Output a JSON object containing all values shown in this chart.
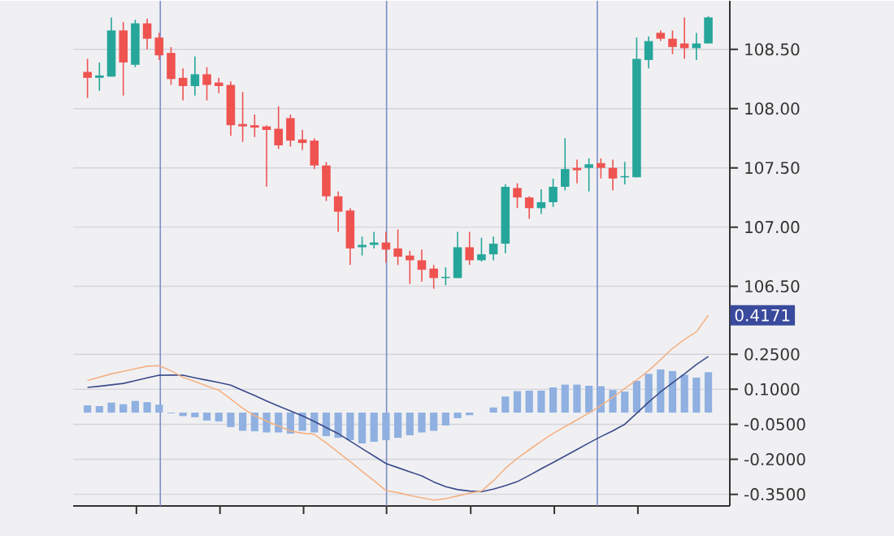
{
  "chart_data": [
    {
      "type": "candlestick",
      "categories": [
        null,
        null,
        null,
        null,
        null,
        null,
        null,
        null,
        null,
        null,
        null,
        null,
        null,
        null,
        null,
        null,
        null,
        null,
        null,
        null,
        null,
        null,
        null,
        null,
        null,
        null,
        null,
        null,
        null,
        null,
        null,
        null,
        null,
        null,
        null,
        null,
        null,
        null,
        null,
        null,
        null,
        null,
        null,
        null,
        null,
        null,
        null,
        null,
        null,
        null,
        null,
        null,
        null
      ],
      "ohlc": [
        [
          108.31,
          108.42,
          108.09,
          108.26
        ],
        [
          108.26,
          108.39,
          108.15,
          108.28
        ],
        [
          108.27,
          108.77,
          108.27,
          108.66
        ],
        [
          108.66,
          108.73,
          108.11,
          108.39
        ],
        [
          108.37,
          108.75,
          108.35,
          108.72
        ],
        [
          108.72,
          108.76,
          108.5,
          108.59
        ],
        [
          108.6,
          108.64,
          108.41,
          108.45
        ],
        [
          108.47,
          108.52,
          108.2,
          108.25
        ],
        [
          108.26,
          108.34,
          108.07,
          108.19
        ],
        [
          108.19,
          108.44,
          108.11,
          108.29
        ],
        [
          108.29,
          108.35,
          108.07,
          108.2
        ],
        [
          108.22,
          108.26,
          108.13,
          108.19
        ],
        [
          108.2,
          108.23,
          107.77,
          107.86
        ],
        [
          107.87,
          108.14,
          107.72,
          107.85
        ],
        [
          107.86,
          107.95,
          107.76,
          107.84
        ],
        [
          107.85,
          107.86,
          107.34,
          107.82
        ],
        [
          107.83,
          108.02,
          107.66,
          107.69
        ],
        [
          107.92,
          107.95,
          107.68,
          107.73
        ],
        [
          107.74,
          107.82,
          107.65,
          107.71
        ],
        [
          107.73,
          107.75,
          107.49,
          107.52
        ],
        [
          107.52,
          107.55,
          107.22,
          107.26
        ],
        [
          107.26,
          107.3,
          106.96,
          107.13
        ],
        [
          107.14,
          107.16,
          106.68,
          106.82
        ],
        [
          106.83,
          106.92,
          106.76,
          106.85
        ],
        [
          106.85,
          106.96,
          106.82,
          106.87
        ],
        [
          106.87,
          106.96,
          106.7,
          106.81
        ],
        [
          106.82,
          106.98,
          106.68,
          106.75
        ],
        [
          106.76,
          106.8,
          106.52,
          106.72
        ],
        [
          106.72,
          106.81,
          106.54,
          106.64
        ],
        [
          106.65,
          106.68,
          106.48,
          106.57
        ],
        [
          106.57,
          106.66,
          106.51,
          106.58
        ],
        [
          106.57,
          106.96,
          106.57,
          106.83
        ],
        [
          106.83,
          106.96,
          106.68,
          106.72
        ],
        [
          106.72,
          106.91,
          106.71,
          106.77
        ],
        [
          106.77,
          106.92,
          106.72,
          106.86
        ],
        [
          106.86,
          107.36,
          106.78,
          107.34
        ],
        [
          107.33,
          107.37,
          107.16,
          107.25
        ],
        [
          107.25,
          107.26,
          107.07,
          107.16
        ],
        [
          107.16,
          107.32,
          107.11,
          107.21
        ],
        [
          107.21,
          107.41,
          107.17,
          107.34
        ],
        [
          107.34,
          107.75,
          107.31,
          107.49
        ],
        [
          107.5,
          107.57,
          107.37,
          107.48
        ],
        [
          107.5,
          107.58,
          107.3,
          107.53
        ],
        [
          107.54,
          107.58,
          107.41,
          107.5
        ],
        [
          107.5,
          107.57,
          107.31,
          107.41
        ],
        [
          107.42,
          107.55,
          107.36,
          107.43
        ],
        [
          107.42,
          108.6,
          107.42,
          108.42
        ],
        [
          108.41,
          108.61,
          108.34,
          108.57
        ],
        [
          108.64,
          108.66,
          108.57,
          108.59
        ],
        [
          108.59,
          108.66,
          108.46,
          108.52
        ],
        [
          108.55,
          108.77,
          108.42,
          108.51
        ],
        [
          108.51,
          108.64,
          108.41,
          108.55
        ],
        [
          108.55,
          108.78,
          108.55,
          108.77
        ]
      ],
      "colors": [
        "#ef5350",
        "#26a69a",
        "#26a69a",
        "#ef5350",
        "#26a69a",
        "#ef5350",
        "#ef5350",
        "#ef5350",
        "#ef5350",
        "#26a69a",
        "#ef5350",
        "#ef5350",
        "#ef5350",
        "#ef5350",
        "#ef5350",
        "#ef5350",
        "#ef5350",
        "#ef5350",
        "#ef5350",
        "#ef5350",
        "#ef5350",
        "#ef5350",
        "#ef5350",
        "#26a69a",
        "#26a69a",
        "#ef5350",
        "#ef5350",
        "#ef5350",
        "#ef5350",
        "#ef5350",
        "#26a69a",
        "#26a69a",
        "#ef5350",
        "#26a69a",
        "#26a69a",
        "#26a69a",
        "#ef5350",
        "#ef5350",
        "#26a69a",
        "#26a69a",
        "#26a69a",
        "#ef5350",
        "#26a69a",
        "#ef5350",
        "#ef5350",
        "#26a69a",
        "#26a69a",
        "#26a69a",
        "#ef5350",
        "#ef5350",
        "#ef5350",
        "#26a69a",
        "#26a69a"
      ],
      "ylim": [
        106.36,
        108.91
      ],
      "yticks": [
        {
          "value": 106.5,
          "label": "106.50"
        },
        {
          "value": 107,
          "label": "107.00"
        },
        {
          "value": 107.5,
          "label": "107.50"
        },
        {
          "value": 108,
          "label": "108.00"
        },
        {
          "value": 108.5,
          "label": "108.50"
        }
      ],
      "tick_labels": "y",
      "grid": "y"
    },
    {
      "type": "bar",
      "ylim": [
        -0.4,
        0.47
      ],
      "categories": [
        null,
        null,
        null,
        null,
        null,
        null,
        null,
        null,
        null,
        null,
        null,
        null,
        null,
        null,
        null,
        null,
        null,
        null,
        null,
        null,
        null,
        null,
        null,
        null,
        null,
        null,
        null,
        null,
        null,
        null,
        null,
        null,
        null,
        null,
        null,
        null,
        null,
        null,
        null,
        null,
        null,
        null,
        null,
        null,
        null,
        null,
        null,
        null,
        null,
        null,
        null,
        null,
        null
      ],
      "series": [
        {
          "type": "bar",
          "color": "#8fb0e0",
          "values": [
            0.031,
            0.028,
            0.043,
            0.036,
            0.05,
            0.045,
            0.034,
            -0.003,
            -0.015,
            -0.02,
            -0.034,
            -0.038,
            -0.062,
            -0.078,
            -0.08,
            -0.085,
            -0.085,
            -0.09,
            -0.078,
            -0.085,
            -0.101,
            -0.108,
            -0.118,
            -0.132,
            -0.125,
            -0.118,
            -0.108,
            -0.097,
            -0.085,
            -0.078,
            -0.055,
            -0.024,
            -0.011,
            0,
            0.022,
            0.069,
            0.092,
            0.094,
            0.094,
            0.108,
            0.12,
            0.12,
            0.115,
            0.113,
            0.097,
            0.09,
            0.136,
            0.166,
            0.185,
            0.178,
            0.162,
            0.15,
            0.173
          ]
        },
        {
          "type": "line",
          "color": "#3b4a8a",
          "values": [
            0.108,
            0.113,
            0.119,
            0.125,
            0.137,
            0.149,
            0.16,
            0.161,
            0.16,
            0.149,
            0.139,
            0.129,
            0.118,
            0.095,
            0.073,
            0.05,
            0.028,
            0.007,
            -0.014,
            -0.038,
            -0.064,
            -0.09,
            -0.122,
            -0.154,
            -0.186,
            -0.218,
            -0.236,
            -0.254,
            -0.271,
            -0.297,
            -0.317,
            -0.33,
            -0.336,
            -0.339,
            -0.328,
            -0.313,
            -0.296,
            -0.269,
            -0.241,
            -0.214,
            -0.186,
            -0.158,
            -0.13,
            -0.103,
            -0.078,
            -0.05,
            -0.003,
            0.045,
            0.089,
            0.128,
            0.166,
            0.206,
            0.241
          ]
        },
        {
          "type": "line",
          "color": "#f4b183",
          "values": [
            0.138,
            0.152,
            0.166,
            0.177,
            0.188,
            0.199,
            0.201,
            0.179,
            0.151,
            0.133,
            0.114,
            0.096,
            0.058,
            0.019,
            -0.014,
            -0.036,
            -0.057,
            -0.079,
            -0.088,
            -0.093,
            -0.13,
            -0.17,
            -0.21,
            -0.252,
            -0.292,
            -0.334,
            -0.343,
            -0.355,
            -0.365,
            -0.375,
            -0.369,
            -0.357,
            -0.345,
            -0.336,
            -0.292,
            -0.239,
            -0.196,
            -0.159,
            -0.123,
            -0.089,
            -0.06,
            -0.031,
            -0.002,
            0.03,
            0.066,
            0.103,
            0.14,
            0.18,
            0.227,
            0.275,
            0.314,
            0.346,
            0.4171
          ]
        }
      ],
      "yticks": [
        {
          "value": -0.35,
          "label": "-0.3500"
        },
        {
          "value": -0.2,
          "label": "-0.2000"
        },
        {
          "value": -0.05,
          "label": "-0.0500"
        },
        {
          "value": 0.1,
          "label": "0.1000"
        },
        {
          "value": 0.25,
          "label": "0.2500"
        }
      ],
      "tick_labels": "y",
      "grid": "y",
      "annotations": [
        {
          "text": "0.4171",
          "y": 0.4171
        }
      ]
    }
  ]
}
